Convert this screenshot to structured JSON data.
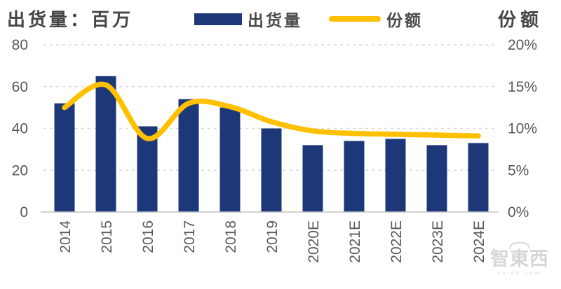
{
  "header": {
    "left_axis_title": "出货量：百万",
    "right_axis_title": "份额",
    "legend": [
      {
        "label": "出货量",
        "swatch": "bar",
        "color": "#1c3879"
      },
      {
        "label": "份额",
        "swatch": "line",
        "color": "#ffc000"
      }
    ]
  },
  "colors": {
    "bar": "#1c3879",
    "line": "#ffc000",
    "gridline": "#d9d9d9",
    "axis_line": "#c3c3c3",
    "tick_text": "#595959"
  },
  "watermark": {
    "cn": "智東西",
    "latin": "zhidx.com"
  },
  "chart_data": {
    "type": "bar+line combo",
    "title": "出货量：百万 / 份额",
    "categories": [
      "2014",
      "2015",
      "2016",
      "2017",
      "2018",
      "2019",
      "2020E",
      "2021E",
      "2022E",
      "2023E",
      "2024E"
    ],
    "series": [
      {
        "name": "出货量",
        "type": "bar",
        "axis": "left",
        "unit": "百万",
        "color": "#1c3879",
        "values": [
          52,
          65,
          41,
          54,
          50,
          40,
          32,
          34,
          35,
          32,
          33
        ]
      },
      {
        "name": "份额",
        "type": "line",
        "axis": "right",
        "unit": "%",
        "color": "#ffc000",
        "smooth": true,
        "values": [
          12.5,
          15.2,
          8.8,
          13.0,
          12.6,
          10.8,
          9.7,
          9.4,
          9.3,
          9.2,
          9.1
        ]
      }
    ],
    "left_axis": {
      "label": "出货量：百万",
      "ticks": [
        0,
        20,
        40,
        60,
        80
      ],
      "range": [
        0,
        80
      ]
    },
    "right_axis": {
      "label": "份额",
      "ticks": [
        "0%",
        "5%",
        "10%",
        "15%",
        "20%"
      ],
      "tick_values": [
        0,
        5,
        10,
        15,
        20
      ],
      "range": [
        0,
        20
      ]
    },
    "grid": "horizontal dashed",
    "legend_position": "top"
  }
}
